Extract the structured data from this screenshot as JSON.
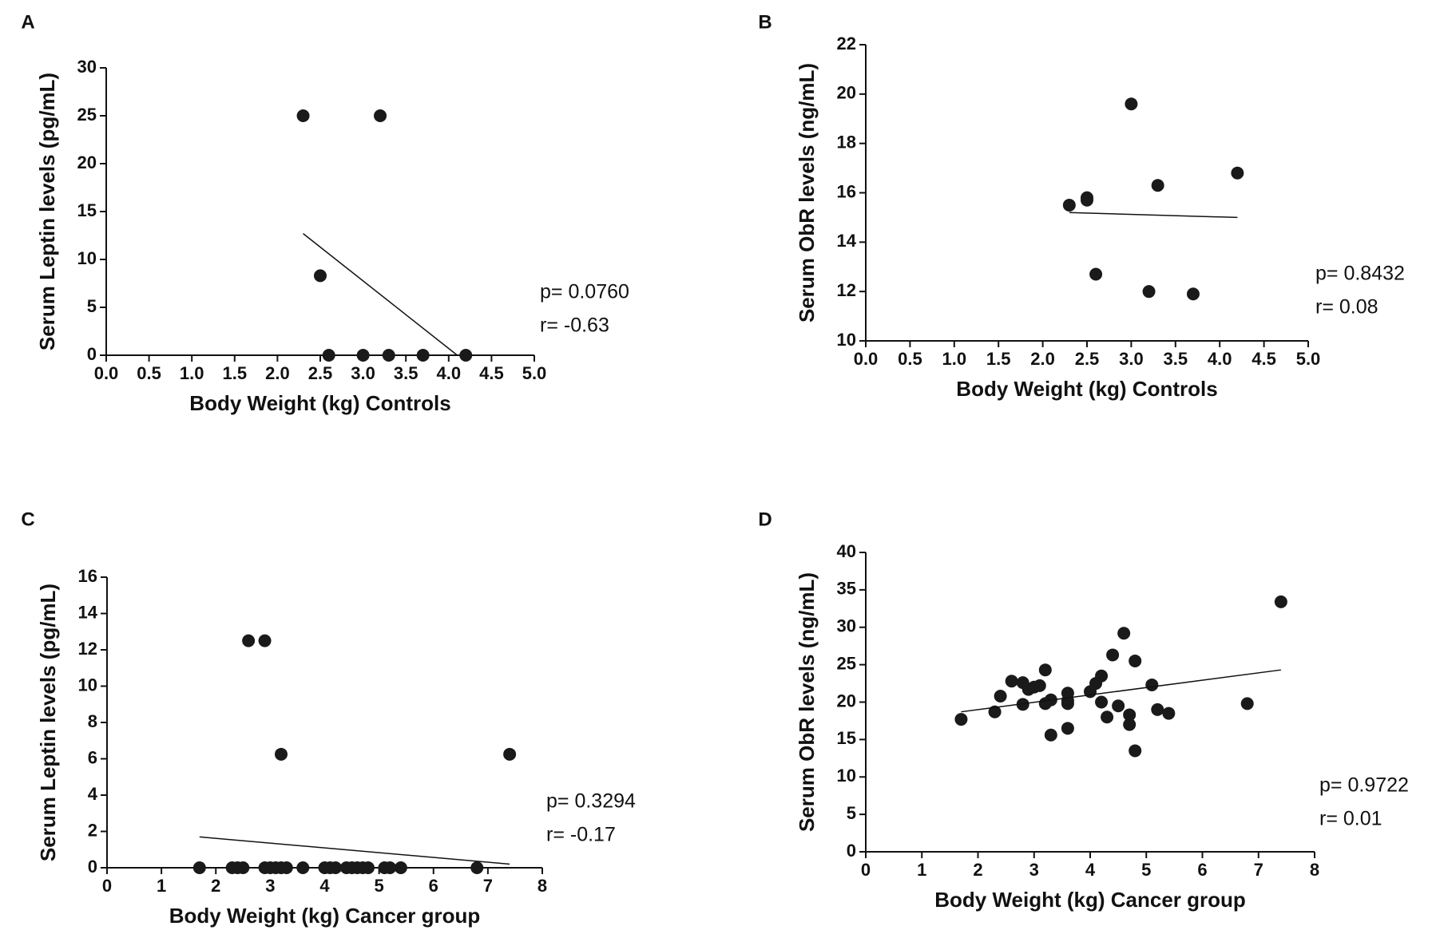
{
  "chart_data": [
    {
      "type": "scatter",
      "panel": "A",
      "xlabel": "Body Weight (kg) Controls",
      "ylabel": "Serum Leptin levels (pg/mL)",
      "xlim": [
        0,
        5
      ],
      "ylim": [
        0,
        30
      ],
      "xticks": [
        {
          "value": 0,
          "label": "0.0"
        },
        0.5,
        {
          "value": 1,
          "label": "1.0"
        },
        1.5,
        {
          "value": 2,
          "label": "2.0"
        },
        2.5,
        {
          "value": 3,
          "label": "3.0"
        },
        3.5,
        {
          "value": 4,
          "label": "4.0"
        },
        4.5,
        {
          "value": 5,
          "label": "5.0"
        }
      ],
      "yticks": [
        0,
        5,
        10,
        15,
        20,
        25,
        30
      ],
      "x": [
        2.3,
        3.2,
        2.5,
        2.6,
        3.0,
        3.3,
        3.7,
        4.2
      ],
      "y": [
        25,
        25,
        8.3,
        0,
        0,
        0,
        0,
        0
      ],
      "color": "#1a1a1a",
      "fit": {
        "x": [
          2.3,
          4.1
        ],
        "y": [
          12.7,
          0
        ]
      },
      "annotations": [
        "p= 0.0760",
        "r= -0.63"
      ]
    },
    {
      "type": "scatter",
      "panel": "B",
      "xlabel": "Body Weight (kg) Controls",
      "ylabel": "Serum ObR levels (ng/mL)",
      "xlim": [
        0,
        5
      ],
      "ylim": [
        10,
        22
      ],
      "xticks": [
        {
          "value": 0,
          "label": "0.0"
        },
        0.5,
        {
          "value": 1,
          "label": "1.0"
        },
        1.5,
        {
          "value": 2,
          "label": "2.0"
        },
        2.5,
        {
          "value": 3,
          "label": "3.0"
        },
        3.5,
        {
          "value": 4,
          "label": "4.0"
        },
        4.5,
        {
          "value": 5,
          "label": "5.0"
        }
      ],
      "yticks": [
        10,
        12,
        14,
        16,
        18,
        20,
        22
      ],
      "x": [
        2.3,
        2.5,
        2.5,
        2.6,
        3.0,
        3.2,
        3.3,
        3.7,
        4.2
      ],
      "y": [
        15.5,
        15.7,
        15.8,
        12.7,
        19.6,
        12.0,
        16.3,
        11.9,
        16.8
      ],
      "color": "#1a1a1a",
      "fit": {
        "x": [
          2.3,
          4.2
        ],
        "y": [
          15.2,
          15.0
        ]
      },
      "annotations": [
        "p= 0.8432",
        "r= 0.08"
      ]
    },
    {
      "type": "scatter",
      "panel": "C",
      "xlabel": "Body Weight (kg) Cancer group",
      "ylabel": "Serum Leptin levels (pg/mL)",
      "xlim": [
        0,
        8
      ],
      "ylim": [
        0,
        16
      ],
      "xticks": [
        0,
        1,
        2,
        3,
        4,
        5,
        6,
        7,
        8
      ],
      "yticks": [
        0,
        2,
        4,
        6,
        8,
        10,
        12,
        14,
        16
      ],
      "x": [
        2.6,
        2.9,
        3.2,
        7.4,
        1.7,
        2.3,
        2.4,
        2.5,
        2.9,
        3.0,
        3.1,
        3.2,
        3.3,
        3.6,
        4.0,
        4.1,
        4.2,
        4.4,
        4.5,
        4.6,
        4.7,
        4.8,
        5.1,
        5.2,
        5.4,
        6.8
      ],
      "y": [
        12.5,
        12.5,
        6.25,
        6.25,
        0,
        0,
        0,
        0,
        0,
        0,
        0,
        0,
        0,
        0,
        0,
        0,
        0,
        0,
        0,
        0,
        0,
        0,
        0,
        0,
        0,
        0
      ],
      "color": "#1a1a1a",
      "fit": {
        "x": [
          1.7,
          7.4
        ],
        "y": [
          1.7,
          0.2
        ]
      },
      "annotations": [
        "p= 0.3294",
        "r= -0.17"
      ]
    },
    {
      "type": "scatter",
      "panel": "D",
      "xlabel": "Body Weight (kg) Cancer group",
      "ylabel": "Serum ObR levels (ng/mL)",
      "xlim": [
        0,
        8
      ],
      "ylim": [
        0,
        40
      ],
      "xticks": [
        0,
        1,
        2,
        3,
        4,
        5,
        6,
        7,
        8
      ],
      "yticks": [
        0,
        5,
        10,
        15,
        20,
        25,
        30,
        35,
        40
      ],
      "x": [
        1.7,
        2.3,
        2.4,
        2.6,
        2.8,
        2.8,
        2.9,
        3.0,
        3.1,
        3.2,
        3.2,
        3.3,
        3.3,
        3.6,
        3.6,
        3.6,
        3.6,
        4.0,
        4.1,
        4.2,
        4.2,
        4.3,
        4.4,
        4.5,
        4.6,
        4.7,
        4.7,
        4.8,
        4.8,
        5.1,
        5.2,
        5.4,
        6.8,
        7.4
      ],
      "y": [
        17.7,
        18.7,
        20.8,
        22.8,
        19.7,
        22.6,
        21.7,
        22.0,
        22.2,
        24.3,
        19.8,
        20.3,
        15.6,
        21.2,
        20.2,
        16.5,
        19.8,
        21.4,
        22.5,
        23.5,
        20.0,
        18.0,
        26.3,
        19.5,
        29.2,
        18.3,
        17.0,
        25.5,
        13.5,
        22.3,
        19.0,
        18.5,
        19.8,
        33.4
      ],
      "color": "#1a1a1a",
      "fit": {
        "x": [
          1.7,
          7.4
        ],
        "y": [
          18.7,
          24.3
        ]
      },
      "annotations": [
        "p= 0.9722",
        "r= 0.01"
      ]
    }
  ]
}
